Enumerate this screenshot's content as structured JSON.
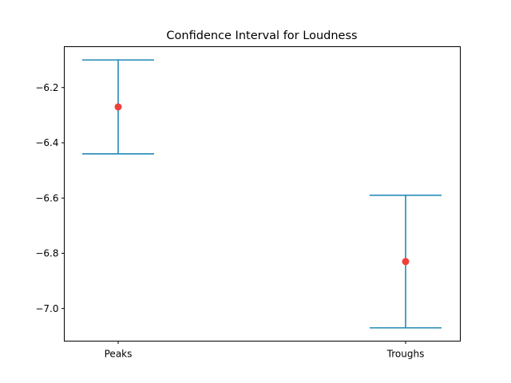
{
  "chart_data": {
    "type": "errorbar",
    "title": "Confidence Interval for Loudness",
    "xlabel": "",
    "ylabel": "",
    "categories": [
      "Peaks",
      "Troughs"
    ],
    "points": [
      {
        "category": "Peaks",
        "mean": -6.27,
        "lower": -6.44,
        "upper": -6.1
      },
      {
        "category": "Troughs",
        "mean": -6.83,
        "lower": -7.07,
        "upper": -6.59
      }
    ],
    "ylim": [
      -7.118,
      -6.052
    ],
    "yticks": [
      -7.0,
      -6.8,
      -6.6,
      -6.4,
      -6.2
    ],
    "ytick_labels": [
      "−7.0",
      "−6.8",
      "−6.6",
      "−6.4",
      "−6.2"
    ],
    "grid": false,
    "legend": "none",
    "colors": {
      "errorbar": "#2189B5",
      "mean_marker": "#EF4137",
      "axes": "#000000"
    }
  }
}
